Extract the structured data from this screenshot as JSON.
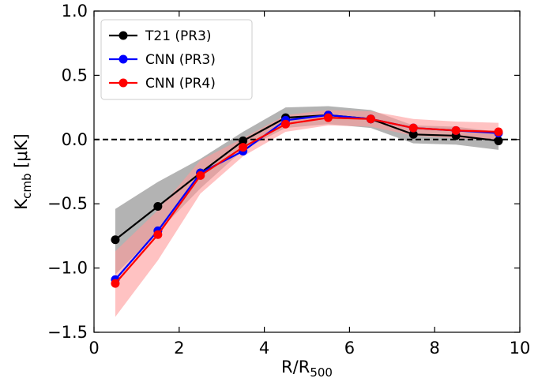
{
  "chart_data": {
    "type": "line",
    "xlabel": "R/R",
    "xlabel_sub": "500",
    "ylabel": "K",
    "ylabel_sub": "cmb",
    "ylabel_unit": " [μK]",
    "xlim": [
      0,
      10
    ],
    "ylim": [
      -1.5,
      1.0
    ],
    "x_ticks": [
      0,
      2,
      4,
      6,
      8,
      10
    ],
    "x_tick_labels": [
      "0",
      "2",
      "4",
      "6",
      "8",
      "10"
    ],
    "y_ticks": [
      -1.5,
      -1.0,
      -0.5,
      0.0,
      0.5,
      1.0
    ],
    "y_tick_labels": [
      "−1.5",
      "−1.0",
      "−0.5",
      "0.0",
      "0.5",
      "1.0"
    ],
    "grid": false,
    "legend_position": "top-left",
    "reference_line": {
      "y": 0.0,
      "style": "dashed",
      "color": "#000000"
    },
    "x": [
      0.5,
      1.5,
      2.5,
      3.5,
      4.5,
      5.5,
      6.5,
      7.5,
      8.5,
      9.5
    ],
    "series": [
      {
        "name": "T21 (PR3)",
        "color": "#000000",
        "band_color": "#808080",
        "values": [
          -0.78,
          -0.52,
          -0.26,
          -0.01,
          0.17,
          0.19,
          0.16,
          0.04,
          0.03,
          -0.01
        ],
        "lower": [
          -1.05,
          -0.72,
          -0.38,
          -0.08,
          0.09,
          0.12,
          0.09,
          -0.03,
          -0.04,
          -0.08
        ],
        "upper": [
          -0.54,
          -0.33,
          -0.15,
          0.06,
          0.25,
          0.26,
          0.23,
          0.11,
          0.1,
          0.06
        ]
      },
      {
        "name": "CNN (PR3)",
        "color": "#0000ff",
        "values": [
          -1.09,
          -0.71,
          -0.26,
          -0.09,
          0.15,
          0.19,
          0.16,
          0.09,
          0.07,
          0.05
        ]
      },
      {
        "name": "CNN (PR4)",
        "color": "#ff0000",
        "band_color": "#ff9999",
        "values": [
          -1.12,
          -0.74,
          -0.28,
          -0.06,
          0.12,
          0.17,
          0.16,
          0.09,
          0.07,
          0.06
        ],
        "lower": [
          -1.38,
          -0.94,
          -0.42,
          -0.13,
          0.06,
          0.11,
          0.1,
          0.03,
          0.01,
          0.0
        ],
        "upper": [
          -0.87,
          -0.55,
          -0.16,
          0.01,
          0.19,
          0.23,
          0.22,
          0.16,
          0.14,
          0.13
        ]
      }
    ]
  }
}
